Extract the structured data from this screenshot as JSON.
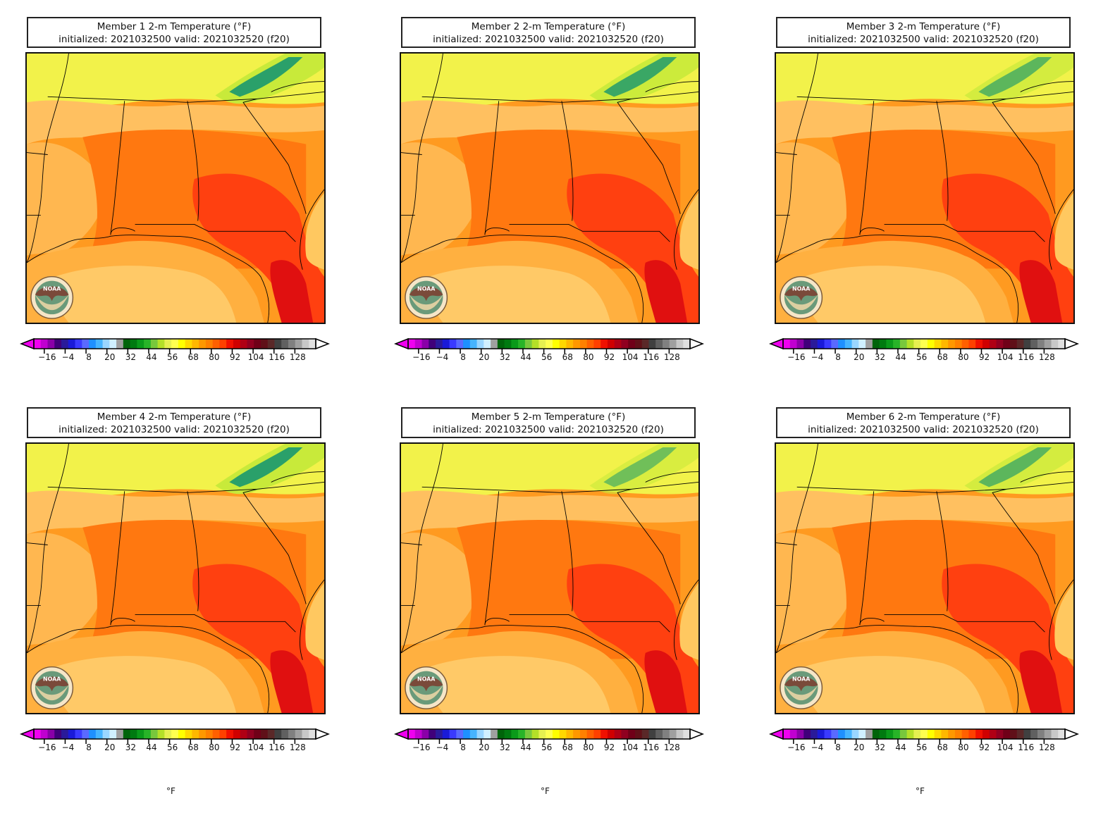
{
  "panels": [
    {
      "title": "Member 1 2-m Temperature (°F)",
      "subtitle": "initialized: 2021032500 valid: 2021032520 (f20)",
      "unit": ""
    },
    {
      "title": "Member 2 2-m Temperature (°F)",
      "subtitle": "initialized: 2021032500 valid: 2021032520 (f20)",
      "unit": ""
    },
    {
      "title": "Member 3 2-m Temperature (°F)",
      "subtitle": "initialized: 2021032500 valid: 2021032520 (f20)",
      "unit": ""
    },
    {
      "title": "Member 4 2-m Temperature (°F)",
      "subtitle": "initialized: 2021032500 valid: 2021032520 (f20)",
      "unit": "°F"
    },
    {
      "title": "Member 5 2-m Temperature (°F)",
      "subtitle": "initialized: 2021032500 valid: 2021032520 (f20)",
      "unit": "°F"
    },
    {
      "title": "Member 6 2-m Temperature (°F)",
      "subtitle": "initialized: 2021032500 valid: 2021032520 (f20)",
      "unit": "°F"
    }
  ],
  "colorbar": {
    "tick_labels": [
      "−16",
      "−4",
      "8",
      "20",
      "32",
      "44",
      "56",
      "68",
      "80",
      "92",
      "104",
      "116",
      "128"
    ],
    "tick_values": [
      -16,
      -4,
      8,
      20,
      32,
      44,
      56,
      68,
      80,
      92,
      104,
      116,
      128
    ],
    "range": [
      -22,
      140
    ],
    "colors": [
      "#f000f0",
      "#c000d0",
      "#8a00a8",
      "#40007a",
      "#2a1a9a",
      "#1a1ad8",
      "#3a3aff",
      "#5a6aff",
      "#1e90ff",
      "#46b4ff",
      "#9ad6ff",
      "#d0f0ff",
      "#a0a0a0",
      "#00640a",
      "#007a10",
      "#0a9a1a",
      "#28b428",
      "#78c83c",
      "#b4e028",
      "#e6f050",
      "#ffff50",
      "#ffff00",
      "#ffd800",
      "#ffb800",
      "#ff9800",
      "#ff8000",
      "#ff6000",
      "#ff4000",
      "#f01000",
      "#d00000",
      "#b00014",
      "#900020",
      "#700018",
      "#601018",
      "#5a2828",
      "#404040",
      "#606060",
      "#808080",
      "#a0a0a0",
      "#c8c8c8",
      "#e0e0e0"
    ]
  },
  "map_palette": {
    "north_band": "#f2f24a",
    "mountains_light": "#c8ea3a",
    "mountains_dark": "#2aa06a",
    "warm_light": "#ffc060",
    "warm_mid": "#ff9a20",
    "warm_orange": "#ff7810",
    "hot_red": "#ff4010",
    "hotter": "#e01010",
    "gulf": "#ffb040",
    "gulf_light": "#ffd070",
    "atlantic": "#ffc860"
  },
  "logo_text": "NOAA"
}
